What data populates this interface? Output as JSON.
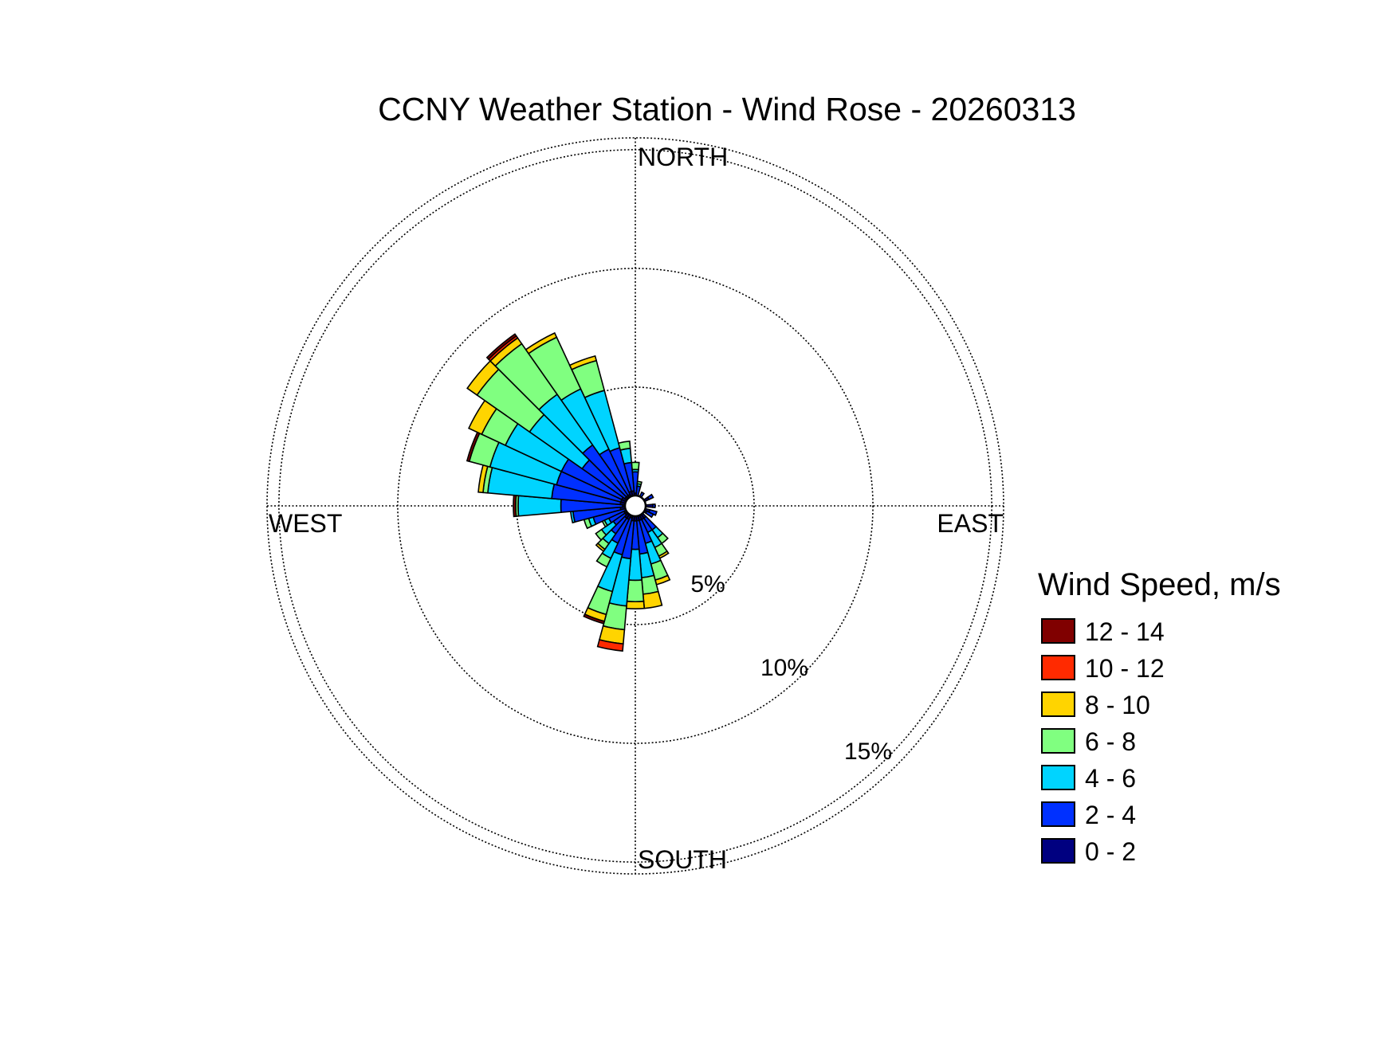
{
  "chart_data": {
    "type": "wind-rose",
    "title": "CCNY Weather Station - Wind Rose - 20260313",
    "direction_labels": {
      "north": "NORTH",
      "south": "SOUTH",
      "east": "EAST",
      "west": "WEST"
    },
    "ring_values": [
      5,
      10,
      15
    ],
    "ring_labels": [
      "5%",
      "10%",
      "15%"
    ],
    "rmax_percent": 15.5,
    "grid": "dotted",
    "legend": {
      "title": "Wind Speed, m/s",
      "position": "right",
      "bins": [
        {
          "label": "12 - 14",
          "color": "#800000"
        },
        {
          "label": "10 - 12",
          "color": "#ff2a00"
        },
        {
          "label": "8 - 10",
          "color": "#ffd400"
        },
        {
          "label": "6 - 8",
          "color": "#80ff80"
        },
        {
          "label": "4 - 6",
          "color": "#00d4ff"
        },
        {
          "label": "2 - 4",
          "color": "#0030ff"
        },
        {
          "label": "0 - 2",
          "color": "#000080"
        }
      ]
    },
    "speed_bins": [
      "0 - 2",
      "2 - 4",
      "4 - 6",
      "6 - 8",
      "8 - 10",
      "10 - 12",
      "12 - 14"
    ],
    "sector_width_deg": 10,
    "sectors": [
      {
        "dir": 0,
        "values": [
          0.4,
          0.9,
          0.1,
          0.3,
          0,
          0,
          0
        ]
      },
      {
        "dir": 10,
        "values": [
          0.3,
          0.4,
          0.1,
          0.1,
          0,
          0,
          0
        ]
      },
      {
        "dir": 30,
        "values": [
          0.3,
          0.2,
          0,
          0,
          0,
          0,
          0
        ]
      },
      {
        "dir": 60,
        "values": [
          0.5,
          0.2,
          0,
          0,
          0,
          0,
          0
        ]
      },
      {
        "dir": 90,
        "values": [
          0.6,
          0.1,
          0,
          0,
          0,
          0,
          0
        ]
      },
      {
        "dir": 110,
        "values": [
          0.5,
          0.3,
          0,
          0,
          0,
          0,
          0
        ]
      },
      {
        "dir": 120,
        "values": [
          0.4,
          0.3,
          0,
          0,
          0,
          0,
          0
        ]
      },
      {
        "dir": 140,
        "values": [
          0.5,
          0.6,
          0.4,
          0.3,
          0,
          0,
          0
        ]
      },
      {
        "dir": 150,
        "values": [
          0.5,
          0.6,
          0.7,
          0.4,
          0.1,
          0,
          0
        ]
      },
      {
        "dir": 160,
        "values": [
          0.5,
          1.0,
          0.9,
          0.7,
          0.2,
          0,
          0
        ]
      },
      {
        "dir": 170,
        "values": [
          0.5,
          1.4,
          1.0,
          0.7,
          0.6,
          0,
          0
        ]
      },
      {
        "dir": 180,
        "values": [
          0.5,
          1.2,
          1.3,
          0.9,
          0.3,
          0,
          0
        ]
      },
      {
        "dir": 190,
        "values": [
          0.5,
          1.6,
          2.0,
          1.0,
          0.6,
          0.3,
          0
        ]
      },
      {
        "dir": 200,
        "values": [
          0.4,
          1.6,
          1.6,
          1.0,
          0.3,
          0,
          0.1
        ]
      },
      {
        "dir": 210,
        "values": [
          0.5,
          1.1,
          0.7,
          0.4,
          0,
          0,
          0
        ]
      },
      {
        "dir": 220,
        "values": [
          0.5,
          0.8,
          0.5,
          0.3,
          0.1,
          0,
          0
        ]
      },
      {
        "dir": 230,
        "values": [
          0.4,
          0.6,
          0.6,
          0.3,
          0,
          0,
          0
        ]
      },
      {
        "dir": 240,
        "values": [
          0.4,
          0.7,
          0.2,
          0.1,
          0,
          0,
          0
        ]
      },
      {
        "dir": 250,
        "values": [
          0.3,
          1.4,
          0.2,
          0.2,
          0,
          0,
          0
        ]
      },
      {
        "dir": 260,
        "values": [
          0.5,
          2.0,
          0.1,
          0,
          0,
          0,
          0
        ]
      },
      {
        "dir": 270,
        "values": [
          0.4,
          2.6,
          1.8,
          0.1,
          0,
          0,
          0.1
        ]
      },
      {
        "dir": 280,
        "values": [
          0.5,
          2.9,
          2.7,
          0.2,
          0.2,
          0,
          0
        ]
      },
      {
        "dir": 290,
        "values": [
          0.5,
          2.8,
          2.9,
          0.9,
          0,
          0,
          0.1
        ]
      },
      {
        "dir": 300,
        "values": [
          0.5,
          2.8,
          2.6,
          1.1,
          0.6,
          0,
          0
        ]
      },
      {
        "dir": 310,
        "values": [
          0.4,
          2.2,
          2.7,
          2.7,
          0.5,
          0,
          0
        ]
      },
      {
        "dir": 320,
        "values": [
          0.4,
          2.6,
          2.6,
          2.6,
          0.3,
          0.1,
          0.1
        ]
      },
      {
        "dir": 330,
        "values": [
          0.4,
          2.1,
          2.8,
          2.4,
          0.2,
          0,
          0
        ]
      },
      {
        "dir": 340,
        "values": [
          0.5,
          1.9,
          2.5,
          1.3,
          0.2,
          0,
          0
        ]
      },
      {
        "dir": 350,
        "values": [
          0.5,
          1.2,
          0.6,
          0.3,
          0,
          0,
          0
        ]
      }
    ]
  }
}
